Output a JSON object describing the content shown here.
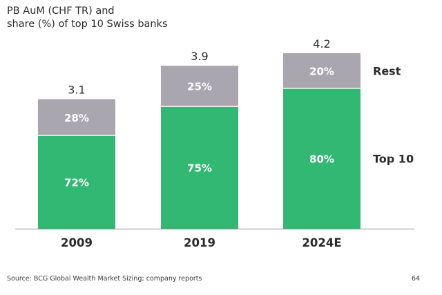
{
  "chart_data": {
    "type": "bar",
    "stacked": true,
    "title": "PB AuM (CHF TR) and\nshare (%) of top 10 Swiss banks",
    "categories": [
      "2009",
      "2019",
      "2024E"
    ],
    "totals": [
      3.1,
      3.9,
      4.2
    ],
    "total_labels": [
      "3.1",
      "3.9",
      "4.2"
    ],
    "series": [
      {
        "name": "Top 10",
        "color": "#33b874",
        "share_pct": [
          72,
          75,
          80
        ],
        "labels": [
          "72%",
          "75%",
          "80%"
        ]
      },
      {
        "name": "Rest",
        "color": "#a9a6b0",
        "share_pct": [
          28,
          25,
          20
        ],
        "labels": [
          "28%",
          "25%",
          "20%"
        ]
      }
    ],
    "ylim": [
      0,
      4.2
    ],
    "grid": false,
    "legend": "right, inline labels"
  },
  "footer": {
    "source": "Source: BCG Global Wealth Market Sizing; company reports",
    "page_number": "64"
  }
}
